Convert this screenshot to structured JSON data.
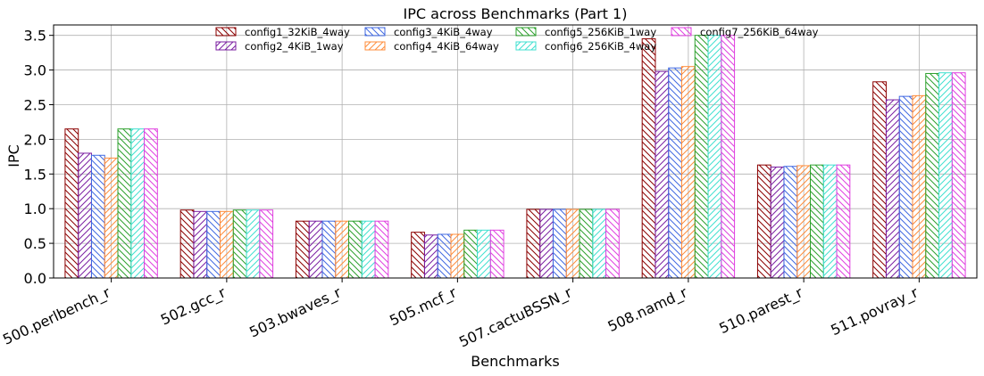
{
  "chart_data": {
    "type": "bar",
    "title": "IPC across Benchmarks (Part 1)",
    "xlabel": "Benchmarks",
    "ylabel": "IPC",
    "ylim": [
      0,
      3.65
    ],
    "yticks": [
      "0.0",
      "0.5",
      "1.0",
      "1.5",
      "2.0",
      "2.5",
      "3.0",
      "3.5"
    ],
    "grid": true,
    "legend_position": "top-center",
    "categories": [
      "500.perlbench_r",
      "502.gcc_r",
      "503.bwaves_r",
      "505.mcf_r",
      "507.cactuBSSN_r",
      "508.namd_r",
      "510.parest_r",
      "511.povray_r"
    ],
    "series": [
      {
        "name": "config1_32KiB_4way",
        "color": "#8b0000",
        "hatch": "back",
        "values": [
          2.15,
          0.98,
          0.82,
          0.66,
          0.99,
          3.45,
          1.63,
          2.83
        ]
      },
      {
        "name": "config2_4KiB_1way",
        "color": "#7b1fa2",
        "hatch": "forward",
        "values": [
          1.8,
          0.96,
          0.82,
          0.62,
          0.99,
          2.98,
          1.6,
          2.57
        ]
      },
      {
        "name": "config3_4KiB_4way",
        "color": "#4169e1",
        "hatch": "back",
        "values": [
          1.77,
          0.96,
          0.82,
          0.63,
          0.99,
          3.03,
          1.61,
          2.62
        ]
      },
      {
        "name": "config4_4KiB_64way",
        "color": "#ff8c3a",
        "hatch": "forward",
        "values": [
          1.73,
          0.96,
          0.82,
          0.63,
          0.99,
          3.05,
          1.62,
          2.63
        ]
      },
      {
        "name": "config5_256KiB_1way",
        "color": "#2ca02c",
        "hatch": "back",
        "values": [
          2.15,
          0.98,
          0.82,
          0.69,
          0.99,
          3.5,
          1.63,
          2.95
        ]
      },
      {
        "name": "config6_256KiB_4way",
        "color": "#40e0d0",
        "hatch": "forward",
        "values": [
          2.15,
          0.98,
          0.82,
          0.69,
          0.99,
          3.5,
          1.63,
          2.96
        ]
      },
      {
        "name": "config7_256KiB_64way",
        "color": "#e040e0",
        "hatch": "back",
        "values": [
          2.15,
          0.98,
          0.82,
          0.69,
          0.99,
          3.5,
          1.63,
          2.96
        ]
      }
    ]
  }
}
